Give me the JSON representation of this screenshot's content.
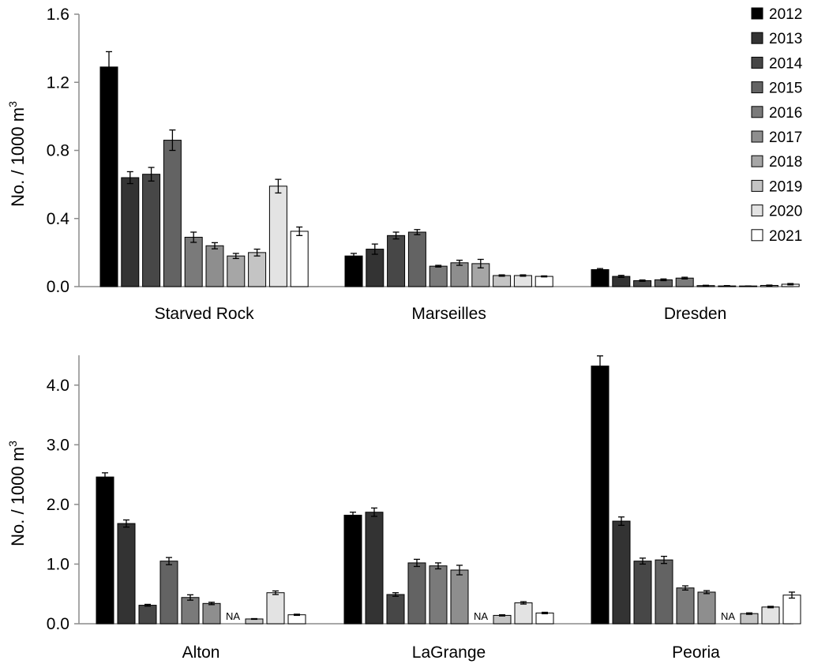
{
  "chart_data": [
    {
      "type": "bar",
      "ylabel": "No. / 1000 m",
      "ylabel_superscript": "3",
      "ylim": [
        0,
        1.6
      ],
      "yticks": [
        "0.0",
        "0.4",
        "0.8",
        "1.2",
        "1.6"
      ],
      "ytick_values": [
        0,
        0.4,
        0.8,
        1.2,
        1.6
      ],
      "categories": [
        "Starved Rock",
        "Marseilles",
        "Dresden"
      ],
      "legend_position": "top-right",
      "series": [
        {
          "name": "2012",
          "color": "#000000",
          "values": [
            1.29,
            0.18,
            0.1
          ],
          "errors": [
            0.09,
            0.015,
            0.006
          ]
        },
        {
          "name": "2013",
          "color": "#333333",
          "values": [
            0.64,
            0.22,
            0.06
          ],
          "errors": [
            0.035,
            0.03,
            0.006
          ]
        },
        {
          "name": "2014",
          "color": "#474747",
          "values": [
            0.66,
            0.3,
            0.035
          ],
          "errors": [
            0.04,
            0.02,
            0.004
          ]
        },
        {
          "name": "2015",
          "color": "#636363",
          "values": [
            0.86,
            0.32,
            0.04
          ],
          "errors": [
            0.06,
            0.015,
            0.005
          ]
        },
        {
          "name": "2016",
          "color": "#7a7a7a",
          "values": [
            0.29,
            0.12,
            0.05
          ],
          "errors": [
            0.03,
            0.005,
            0.005
          ]
        },
        {
          "name": "2017",
          "color": "#8e8e8e",
          "values": [
            0.24,
            0.14,
            0.006
          ],
          "errors": [
            0.018,
            0.015,
            0.002
          ]
        },
        {
          "name": "2018",
          "color": "#a6a6a6",
          "values": [
            0.18,
            0.135,
            0.004
          ],
          "errors": [
            0.015,
            0.025,
            0.002
          ]
        },
        {
          "name": "2019",
          "color": "#c4c4c4",
          "values": [
            0.2,
            0.065,
            0.003
          ],
          "errors": [
            0.02,
            0.004,
            0.001
          ]
        },
        {
          "name": "2020",
          "color": "#e3e3e3",
          "values": [
            0.59,
            0.065,
            0.007
          ],
          "errors": [
            0.04,
            0.004,
            0.002
          ]
        },
        {
          "name": "2021",
          "color": "#ffffff",
          "values": [
            0.325,
            0.06,
            0.014
          ],
          "errors": [
            0.025,
            0.003,
            0.004
          ]
        }
      ]
    },
    {
      "type": "bar",
      "ylabel": "No. / 1000 m",
      "ylabel_superscript": "3",
      "ylim": [
        0,
        4.5
      ],
      "yticks": [
        "0.0",
        "1.0",
        "2.0",
        "3.0",
        "4.0"
      ],
      "ytick_values": [
        0,
        1,
        2,
        3,
        4
      ],
      "categories": [
        "Alton",
        "LaGrange",
        "Peoria"
      ],
      "na_label": "NA",
      "series": [
        {
          "name": "2012",
          "color": "#000000",
          "values": [
            2.46,
            1.82,
            4.32
          ],
          "errors": [
            0.07,
            0.05,
            0.17
          ]
        },
        {
          "name": "2013",
          "color": "#333333",
          "values": [
            1.68,
            1.87,
            1.72
          ],
          "errors": [
            0.06,
            0.07,
            0.07
          ]
        },
        {
          "name": "2014",
          "color": "#474747",
          "values": [
            0.31,
            0.49,
            1.05
          ],
          "errors": [
            0.015,
            0.03,
            0.05
          ]
        },
        {
          "name": "2015",
          "color": "#636363",
          "values": [
            1.05,
            1.02,
            1.07
          ],
          "errors": [
            0.06,
            0.06,
            0.06
          ]
        },
        {
          "name": "2016",
          "color": "#7a7a7a",
          "values": [
            0.44,
            0.97,
            0.6
          ],
          "errors": [
            0.045,
            0.05,
            0.035
          ]
        },
        {
          "name": "2017",
          "color": "#8e8e8e",
          "values": [
            0.34,
            0.9,
            0.53
          ],
          "errors": [
            0.02,
            0.08,
            0.025
          ]
        },
        {
          "name": "2018",
          "color": "#a6a6a6",
          "values": [
            null,
            null,
            null
          ],
          "errors": [
            null,
            null,
            null
          ]
        },
        {
          "name": "2019",
          "color": "#c4c4c4",
          "values": [
            0.08,
            0.14,
            0.17
          ],
          "errors": [
            0.006,
            0.01,
            0.012
          ]
        },
        {
          "name": "2020",
          "color": "#e3e3e3",
          "values": [
            0.52,
            0.35,
            0.28
          ],
          "errors": [
            0.03,
            0.02,
            0.012
          ]
        },
        {
          "name": "2021",
          "color": "#ffffff",
          "values": [
            0.15,
            0.18,
            0.48
          ],
          "errors": [
            0.01,
            0.012,
            0.05
          ]
        }
      ]
    }
  ]
}
